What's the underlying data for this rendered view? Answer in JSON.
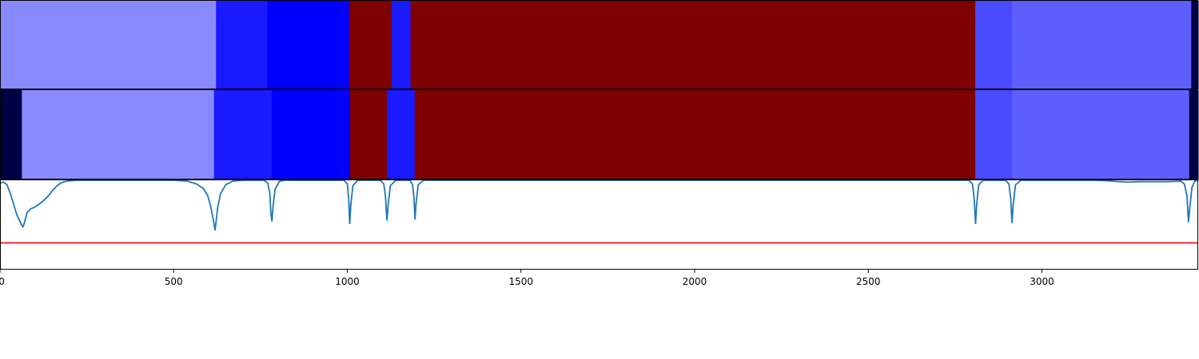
{
  "chart_data": {
    "type": "heatmap",
    "xlim": [
      0,
      3450
    ],
    "x_ticks": [
      {
        "value": 0,
        "label": "0"
      },
      {
        "value": 500,
        "label": "500"
      },
      {
        "value": 1000,
        "label": "1000"
      },
      {
        "value": 1500,
        "label": "1500"
      },
      {
        "value": 2000,
        "label": "2000"
      },
      {
        "value": 2500,
        "label": "2500"
      },
      {
        "value": 3000,
        "label": "3000"
      }
    ],
    "tracks": [
      {
        "segments": [
          {
            "start": 0,
            "end": 622,
            "color": "#8a8aff"
          },
          {
            "start": 622,
            "end": 770,
            "color": "#1a1aff"
          },
          {
            "start": 770,
            "end": 1005,
            "color": "#0000ff"
          },
          {
            "start": 1005,
            "end": 1128,
            "color": "#7f0000"
          },
          {
            "start": 1128,
            "end": 1182,
            "color": "#1a1aff"
          },
          {
            "start": 1182,
            "end": 2808,
            "color": "#7f0000"
          },
          {
            "start": 2808,
            "end": 2914,
            "color": "#4a4aff"
          },
          {
            "start": 2914,
            "end": 3430,
            "color": "#5e5eff"
          },
          {
            "start": 3430,
            "end": 3450,
            "color": "#000044"
          }
        ]
      },
      {
        "segments": [
          {
            "start": 0,
            "end": 63,
            "color": "#000044"
          },
          {
            "start": 63,
            "end": 616,
            "color": "#8a8aff"
          },
          {
            "start": 616,
            "end": 782,
            "color": "#1a1aff"
          },
          {
            "start": 782,
            "end": 1008,
            "color": "#0000ff"
          },
          {
            "start": 1008,
            "end": 1114,
            "color": "#7f0000"
          },
          {
            "start": 1114,
            "end": 1194,
            "color": "#1a1aff"
          },
          {
            "start": 1194,
            "end": 2808,
            "color": "#7f0000"
          },
          {
            "start": 2808,
            "end": 2914,
            "color": "#4a4aff"
          },
          {
            "start": 2914,
            "end": 3424,
            "color": "#5e5eff"
          },
          {
            "start": 3424,
            "end": 3450,
            "color": "#000044"
          }
        ]
      }
    ],
    "line_plot": {
      "ylim": [
        0,
        1
      ],
      "baseline": 1.0,
      "threshold": 0.3,
      "threshold_color": "#ff0000",
      "line_color": "#1f77b4",
      "points": [
        [
          0,
          0.97
        ],
        [
          10,
          0.98
        ],
        [
          20,
          0.95
        ],
        [
          30,
          0.85
        ],
        [
          40,
          0.72
        ],
        [
          48,
          0.62
        ],
        [
          55,
          0.56
        ],
        [
          62,
          0.5
        ],
        [
          66,
          0.48
        ],
        [
          70,
          0.52
        ],
        [
          78,
          0.64
        ],
        [
          88,
          0.68
        ],
        [
          100,
          0.7
        ],
        [
          112,
          0.73
        ],
        [
          125,
          0.77
        ],
        [
          138,
          0.82
        ],
        [
          150,
          0.88
        ],
        [
          162,
          0.93
        ],
        [
          175,
          0.97
        ],
        [
          190,
          0.99
        ],
        [
          220,
          1.0
        ],
        [
          500,
          1.0
        ],
        [
          540,
          0.99
        ],
        [
          565,
          0.96
        ],
        [
          585,
          0.91
        ],
        [
          598,
          0.83
        ],
        [
          606,
          0.72
        ],
        [
          612,
          0.6
        ],
        [
          616,
          0.52
        ],
        [
          619,
          0.44
        ],
        [
          622,
          0.53
        ],
        [
          627,
          0.7
        ],
        [
          635,
          0.85
        ],
        [
          650,
          0.95
        ],
        [
          670,
          0.99
        ],
        [
          700,
          1.0
        ],
        [
          760,
          1.0
        ],
        [
          771,
          0.97
        ],
        [
          777,
          0.85
        ],
        [
          780,
          0.63
        ],
        [
          783,
          0.54
        ],
        [
          786,
          0.7
        ],
        [
          792,
          0.9
        ],
        [
          805,
          0.99
        ],
        [
          820,
          1.0
        ],
        [
          990,
          1.0
        ],
        [
          1000,
          0.96
        ],
        [
          1004,
          0.8
        ],
        [
          1007,
          0.51
        ],
        [
          1010,
          0.72
        ],
        [
          1016,
          0.94
        ],
        [
          1030,
          1.0
        ],
        [
          1095,
          1.0
        ],
        [
          1105,
          0.96
        ],
        [
          1110,
          0.82
        ],
        [
          1114,
          0.55
        ],
        [
          1118,
          0.74
        ],
        [
          1124,
          0.94
        ],
        [
          1140,
          1.0
        ],
        [
          1180,
          1.0
        ],
        [
          1188,
          0.95
        ],
        [
          1192,
          0.8
        ],
        [
          1195,
          0.56
        ],
        [
          1198,
          0.74
        ],
        [
          1204,
          0.95
        ],
        [
          1220,
          1.0
        ],
        [
          2790,
          1.0
        ],
        [
          2800,
          0.96
        ],
        [
          2805,
          0.8
        ],
        [
          2809,
          0.51
        ],
        [
          2812,
          0.72
        ],
        [
          2818,
          0.95
        ],
        [
          2830,
          1.0
        ],
        [
          2895,
          1.0
        ],
        [
          2905,
          0.96
        ],
        [
          2910,
          0.8
        ],
        [
          2914,
          0.52
        ],
        [
          2917,
          0.72
        ],
        [
          2924,
          0.95
        ],
        [
          2940,
          1.0
        ],
        [
          3150,
          1.0
        ],
        [
          3190,
          0.995
        ],
        [
          3220,
          0.985
        ],
        [
          3250,
          0.98
        ],
        [
          3280,
          0.985
        ],
        [
          3320,
          0.985
        ],
        [
          3360,
          0.985
        ],
        [
          3400,
          0.99
        ],
        [
          3410,
          0.96
        ],
        [
          3418,
          0.82
        ],
        [
          3422,
          0.53
        ],
        [
          3426,
          0.7
        ],
        [
          3432,
          0.92
        ],
        [
          3440,
          0.99
        ],
        [
          3450,
          1.0
        ]
      ]
    }
  }
}
